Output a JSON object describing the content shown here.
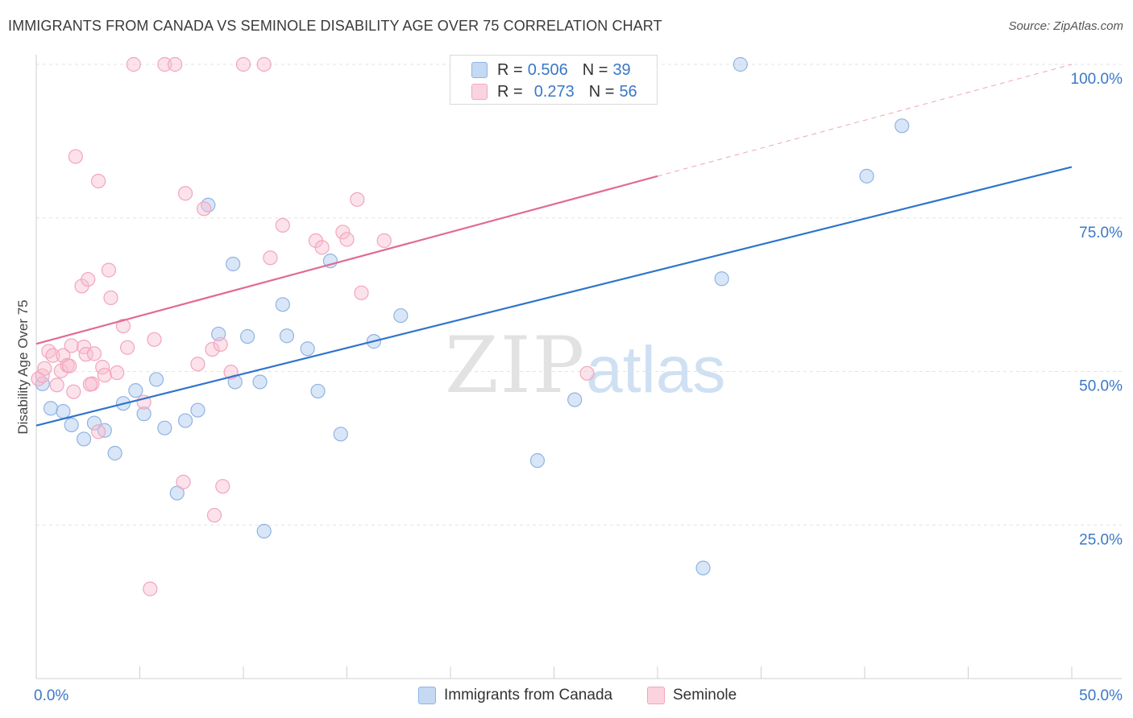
{
  "title": "IMMIGRANTS FROM CANADA VS SEMINOLE DISABILITY AGE OVER 75 CORRELATION CHART",
  "source": "Source: ZipAtlas.com",
  "watermark": {
    "zip": "ZIP",
    "atlas": "atlas"
  },
  "legend": {
    "rows": [
      {
        "r_label": "R =",
        "r_value": "0.506",
        "n_label": "N =",
        "n_value": "39"
      },
      {
        "r_label": "R =",
        "r_value": "0.273",
        "n_label": "N =",
        "n_value": "56"
      }
    ]
  },
  "bottom_legend": [
    "Immigrants from Canada",
    "Seminole"
  ],
  "chart_data": {
    "type": "scatter",
    "title": "IMMIGRANTS FROM CANADA VS SEMINOLE DISABILITY AGE OVER 75 CORRELATION CHART",
    "xlabel": "",
    "ylabel": "Disability Age Over 75",
    "xlim": [
      0,
      50
    ],
    "ylim": [
      0,
      100
    ],
    "x_tick_labels": [
      "0.0%",
      "50.0%"
    ],
    "y_tick_values": [
      25,
      50,
      75,
      100
    ],
    "y_tick_labels": [
      "25.0%",
      "50.0%",
      "75.0%",
      "100.0%"
    ],
    "grid": true,
    "colors": {
      "canada": "#8fb4e3",
      "canada_line": "#2f74cc",
      "seminole": "#f2a5bd",
      "seminole_line": "#e16b92",
      "tick_label": "#3a78c8"
    },
    "series": [
      {
        "name": "Immigrants from Canada",
        "r": 0.506,
        "n": 39,
        "trend": {
          "x": [
            0,
            50
          ],
          "y": [
            41.2,
            83.3
          ],
          "dashed_from": null
        },
        "points": [
          [
            0.3,
            48.0
          ],
          [
            0.7,
            44.0
          ],
          [
            1.3,
            43.5
          ],
          [
            1.7,
            41.3
          ],
          [
            2.3,
            39.0
          ],
          [
            2.8,
            41.6
          ],
          [
            3.3,
            40.4
          ],
          [
            3.8,
            36.7
          ],
          [
            4.2,
            44.8
          ],
          [
            4.8,
            46.9
          ],
          [
            5.2,
            43.1
          ],
          [
            5.8,
            48.7
          ],
          [
            6.2,
            40.8
          ],
          [
            6.8,
            30.2
          ],
          [
            7.2,
            42.0
          ],
          [
            7.8,
            43.7
          ],
          [
            8.3,
            77.1
          ],
          [
            8.8,
            56.1
          ],
          [
            9.5,
            67.5
          ],
          [
            9.6,
            48.3
          ],
          [
            10.2,
            55.7
          ],
          [
            10.8,
            48.3
          ],
          [
            11.0,
            24.0
          ],
          [
            11.9,
            60.9
          ],
          [
            12.1,
            55.8
          ],
          [
            13.1,
            53.7
          ],
          [
            13.6,
            46.8
          ],
          [
            14.2,
            68.0
          ],
          [
            14.7,
            39.8
          ],
          [
            16.3,
            54.9
          ],
          [
            17.6,
            59.1
          ],
          [
            20.7,
            100.0
          ],
          [
            24.2,
            35.5
          ],
          [
            26.0,
            45.4
          ],
          [
            32.2,
            18.0
          ],
          [
            33.1,
            65.1
          ],
          [
            34.0,
            100.0
          ],
          [
            40.1,
            81.8
          ],
          [
            41.8,
            90.0
          ]
        ]
      },
      {
        "name": "Seminole",
        "r": 0.273,
        "n": 56,
        "trend": {
          "x": [
            0,
            50
          ],
          "y": [
            54.5,
            100.0
          ],
          "dashed_from": 30.0
        },
        "points": [
          [
            0.1,
            48.8
          ],
          [
            0.3,
            49.3
          ],
          [
            0.4,
            50.5
          ],
          [
            0.6,
            53.3
          ],
          [
            0.8,
            52.6
          ],
          [
            1.0,
            47.8
          ],
          [
            1.2,
            50.1
          ],
          [
            1.3,
            52.6
          ],
          [
            1.5,
            51.0
          ],
          [
            1.7,
            54.2
          ],
          [
            1.8,
            46.7
          ],
          [
            1.9,
            85.0
          ],
          [
            2.2,
            63.9
          ],
          [
            2.3,
            54.0
          ],
          [
            2.4,
            52.8
          ],
          [
            2.5,
            65.0
          ],
          [
            2.7,
            48.0
          ],
          [
            2.8,
            52.9
          ],
          [
            3.0,
            81.0
          ],
          [
            3.2,
            50.7
          ],
          [
            3.3,
            49.4
          ],
          [
            3.5,
            66.5
          ],
          [
            3.6,
            62.0
          ],
          [
            3.9,
            49.8
          ],
          [
            4.2,
            57.4
          ],
          [
            4.4,
            53.9
          ],
          [
            4.7,
            100.0
          ],
          [
            5.2,
            45.0
          ],
          [
            5.5,
            14.6
          ],
          [
            5.7,
            55.2
          ],
          [
            6.2,
            100.0
          ],
          [
            6.7,
            100.0
          ],
          [
            7.1,
            32.0
          ],
          [
            7.2,
            79.0
          ],
          [
            7.8,
            51.2
          ],
          [
            8.1,
            76.5
          ],
          [
            8.5,
            53.6
          ],
          [
            8.6,
            26.6
          ],
          [
            8.9,
            54.4
          ],
          [
            9.0,
            31.3
          ],
          [
            10.0,
            100.0
          ],
          [
            11.0,
            100.0
          ],
          [
            11.3,
            68.5
          ],
          [
            11.9,
            73.8
          ],
          [
            13.5,
            71.3
          ],
          [
            13.8,
            70.2
          ],
          [
            14.8,
            72.7
          ],
          [
            15.0,
            71.5
          ],
          [
            15.5,
            78.0
          ],
          [
            15.7,
            62.8
          ],
          [
            16.8,
            71.3
          ],
          [
            26.6,
            49.7
          ],
          [
            3.0,
            40.2
          ],
          [
            1.6,
            50.9
          ],
          [
            2.6,
            47.9
          ],
          [
            9.4,
            49.9
          ]
        ]
      }
    ]
  }
}
